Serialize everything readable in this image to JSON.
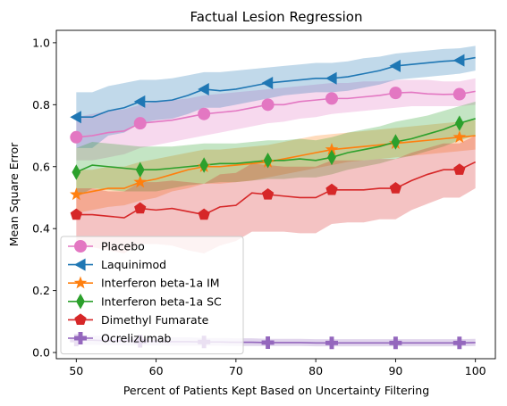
{
  "chart_data": {
    "type": "line",
    "title": "Factual Lesion Regression",
    "xlabel": "Percent of Patients Kept Based on Uncertainty Filtering",
    "ylabel": "Mean Square Error",
    "xlim": [
      47.5,
      102.5
    ],
    "ylim": [
      -0.02,
      1.04
    ],
    "xticks": [
      50,
      60,
      70,
      80,
      90,
      100
    ],
    "yticks": [
      0.0,
      0.2,
      0.4,
      0.6,
      0.8,
      1.0
    ],
    "xtick_labels": [
      "50",
      "60",
      "70",
      "80",
      "90",
      "100"
    ],
    "ytick_labels": [
      "0.0",
      "0.2",
      "0.4",
      "0.6",
      "0.8",
      "1.0"
    ],
    "grid": false,
    "legend_position": "lower-left",
    "x": [
      50,
      52,
      54,
      56,
      58,
      60,
      62,
      64,
      66,
      68,
      70,
      72,
      74,
      76,
      78,
      80,
      82,
      84,
      86,
      88,
      90,
      92,
      94,
      96,
      98,
      100
    ],
    "marker_x": [
      50,
      58,
      66,
      74,
      82,
      90,
      98
    ],
    "series": [
      {
        "name": "Placebo",
        "color": "#e377c2",
        "marker": "circle",
        "values": [
          0.695,
          0.7,
          0.71,
          0.715,
          0.74,
          0.745,
          0.75,
          0.76,
          0.77,
          0.775,
          0.78,
          0.79,
          0.8,
          0.8,
          0.81,
          0.815,
          0.82,
          0.82,
          0.825,
          0.83,
          0.838,
          0.84,
          0.835,
          0.833,
          0.834,
          0.843
        ],
        "lower": [
          0.62,
          0.62,
          0.63,
          0.64,
          0.66,
          0.67,
          0.68,
          0.69,
          0.7,
          0.71,
          0.72,
          0.73,
          0.74,
          0.745,
          0.755,
          0.76,
          0.77,
          0.775,
          0.78,
          0.785,
          0.79,
          0.795,
          0.795,
          0.795,
          0.795,
          0.8
        ],
        "upper": [
          0.76,
          0.77,
          0.78,
          0.785,
          0.8,
          0.81,
          0.815,
          0.82,
          0.83,
          0.835,
          0.84,
          0.845,
          0.85,
          0.855,
          0.86,
          0.865,
          0.87,
          0.87,
          0.875,
          0.875,
          0.88,
          0.88,
          0.88,
          0.875,
          0.875,
          0.885
        ]
      },
      {
        "name": "Laquinimod",
        "color": "#1f77b4",
        "marker": "triangle-left",
        "values": [
          0.76,
          0.76,
          0.78,
          0.79,
          0.81,
          0.81,
          0.815,
          0.83,
          0.85,
          0.845,
          0.85,
          0.86,
          0.87,
          0.875,
          0.88,
          0.885,
          0.885,
          0.89,
          0.9,
          0.91,
          0.925,
          0.93,
          0.935,
          0.94,
          0.943,
          0.952
        ],
        "lower": [
          0.66,
          0.66,
          0.7,
          0.71,
          0.74,
          0.75,
          0.755,
          0.77,
          0.79,
          0.79,
          0.8,
          0.81,
          0.82,
          0.83,
          0.835,
          0.84,
          0.84,
          0.845,
          0.855,
          0.865,
          0.88,
          0.885,
          0.89,
          0.895,
          0.9,
          0.91
        ],
        "upper": [
          0.84,
          0.84,
          0.86,
          0.87,
          0.88,
          0.88,
          0.885,
          0.895,
          0.905,
          0.905,
          0.91,
          0.915,
          0.92,
          0.925,
          0.93,
          0.935,
          0.935,
          0.94,
          0.95,
          0.955,
          0.965,
          0.97,
          0.975,
          0.98,
          0.982,
          0.99
        ]
      },
      {
        "name": "Interferon beta-1a IM",
        "color": "#ff7f0e",
        "marker": "star",
        "values": [
          0.51,
          0.52,
          0.53,
          0.53,
          0.55,
          0.56,
          0.575,
          0.59,
          0.6,
          0.6,
          0.605,
          0.61,
          0.615,
          0.625,
          0.635,
          0.645,
          0.655,
          0.66,
          0.665,
          0.67,
          0.675,
          0.68,
          0.685,
          0.69,
          0.695,
          0.7
        ],
        "lower": [
          0.45,
          0.46,
          0.47,
          0.475,
          0.49,
          0.5,
          0.52,
          0.53,
          0.545,
          0.545,
          0.55,
          0.555,
          0.565,
          0.575,
          0.585,
          0.595,
          0.605,
          0.615,
          0.62,
          0.625,
          0.63,
          0.635,
          0.64,
          0.645,
          0.65,
          0.655
        ],
        "upper": [
          0.59,
          0.59,
          0.6,
          0.6,
          0.615,
          0.625,
          0.635,
          0.645,
          0.655,
          0.655,
          0.66,
          0.665,
          0.67,
          0.68,
          0.69,
          0.7,
          0.705,
          0.71,
          0.715,
          0.72,
          0.725,
          0.73,
          0.735,
          0.74,
          0.745,
          0.75
        ]
      },
      {
        "name": "Interferon beta-1a SC",
        "color": "#2ca02c",
        "marker": "diamond",
        "values": [
          0.582,
          0.605,
          0.6,
          0.595,
          0.59,
          0.59,
          0.595,
          0.6,
          0.605,
          0.61,
          0.61,
          0.615,
          0.62,
          0.62,
          0.625,
          0.62,
          0.63,
          0.645,
          0.655,
          0.665,
          0.68,
          0.69,
          0.705,
          0.72,
          0.74,
          0.755
        ],
        "lower": [
          0.5,
          0.53,
          0.525,
          0.52,
          0.52,
          0.52,
          0.53,
          0.54,
          0.545,
          0.55,
          0.55,
          0.555,
          0.56,
          0.56,
          0.565,
          0.565,
          0.575,
          0.59,
          0.6,
          0.61,
          0.625,
          0.635,
          0.65,
          0.665,
          0.685,
          0.7
        ],
        "upper": [
          0.66,
          0.68,
          0.675,
          0.67,
          0.665,
          0.665,
          0.665,
          0.67,
          0.675,
          0.675,
          0.675,
          0.68,
          0.685,
          0.685,
          0.69,
          0.685,
          0.695,
          0.71,
          0.72,
          0.73,
          0.745,
          0.755,
          0.765,
          0.78,
          0.795,
          0.81
        ]
      },
      {
        "name": "Dimethyl Fumarate",
        "color": "#d62728",
        "marker": "pentagon",
        "values": [
          0.445,
          0.445,
          0.44,
          0.435,
          0.465,
          0.46,
          0.465,
          0.455,
          0.445,
          0.47,
          0.475,
          0.515,
          0.51,
          0.505,
          0.5,
          0.5,
          0.525,
          0.525,
          0.525,
          0.53,
          0.53,
          0.555,
          0.575,
          0.59,
          0.59,
          0.615
        ],
        "lower": [
          0.34,
          0.34,
          0.33,
          0.32,
          0.35,
          0.35,
          0.345,
          0.33,
          0.32,
          0.345,
          0.36,
          0.39,
          0.39,
          0.39,
          0.385,
          0.385,
          0.415,
          0.42,
          0.42,
          0.43,
          0.43,
          0.46,
          0.48,
          0.5,
          0.5,
          0.53
        ],
        "upper": [
          0.53,
          0.53,
          0.52,
          0.52,
          0.55,
          0.55,
          0.555,
          0.55,
          0.545,
          0.575,
          0.58,
          0.61,
          0.605,
          0.6,
          0.6,
          0.6,
          0.62,
          0.62,
          0.62,
          0.625,
          0.625,
          0.645,
          0.66,
          0.675,
          0.675,
          0.7
        ]
      },
      {
        "name": "Ocrelizumab",
        "color": "#9467bd",
        "marker": "plus",
        "values": [
          0.04,
          0.04,
          0.038,
          0.037,
          0.036,
          0.036,
          0.035,
          0.035,
          0.034,
          0.034,
          0.033,
          0.033,
          0.032,
          0.032,
          0.032,
          0.031,
          0.031,
          0.031,
          0.031,
          0.031,
          0.031,
          0.031,
          0.031,
          0.031,
          0.031,
          0.032
        ],
        "lower": [
          0.025,
          0.025,
          0.024,
          0.023,
          0.023,
          0.023,
          0.022,
          0.022,
          0.022,
          0.022,
          0.021,
          0.021,
          0.021,
          0.021,
          0.021,
          0.02,
          0.02,
          0.02,
          0.02,
          0.02,
          0.02,
          0.02,
          0.02,
          0.02,
          0.02,
          0.021
        ],
        "upper": [
          0.055,
          0.055,
          0.053,
          0.051,
          0.05,
          0.05,
          0.049,
          0.049,
          0.047,
          0.047,
          0.046,
          0.046,
          0.044,
          0.044,
          0.044,
          0.043,
          0.043,
          0.043,
          0.043,
          0.043,
          0.043,
          0.043,
          0.043,
          0.043,
          0.043,
          0.044
        ]
      }
    ]
  }
}
